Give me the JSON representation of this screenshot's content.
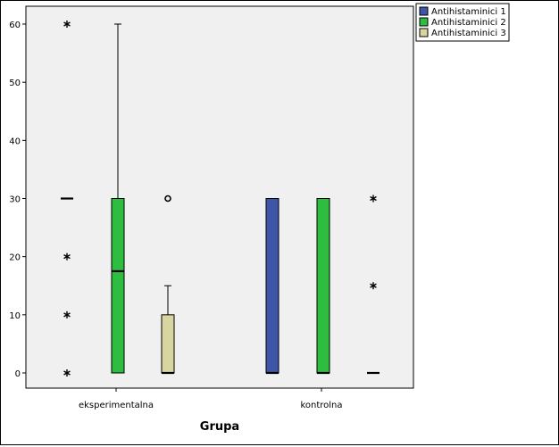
{
  "chart_data": {
    "type": "boxplot",
    "xlabel": "Grupa",
    "ylabel": "",
    "ylim": [
      -2,
      64
    ],
    "yticks": [
      0,
      10,
      20,
      30,
      40,
      50,
      60
    ],
    "categories": [
      "eksperimentalna",
      "kontrolna"
    ],
    "legend_position": "top-right",
    "grid": false,
    "series": [
      {
        "name": "Antihistaminici 1",
        "color": "#3f56a8",
        "boxes": [
          {
            "category": "eksperimentalna",
            "q1": 30,
            "median": 30,
            "q3": 30,
            "whisker_low": 30,
            "whisker_high": 30,
            "extremes": [
              60,
              20,
              10,
              0
            ],
            "outliers": []
          },
          {
            "category": "kontrolna",
            "q1": 0,
            "median": 0,
            "q3": 30,
            "whisker_low": 0,
            "whisker_high": 30,
            "extremes": [],
            "outliers": []
          }
        ]
      },
      {
        "name": "Antihistaminici 2",
        "color": "#2dbd3f",
        "boxes": [
          {
            "category": "eksperimentalna",
            "q1": 0,
            "median": 17.5,
            "q3": 30,
            "whisker_low": 0,
            "whisker_high": 60,
            "extremes": [],
            "outliers": []
          },
          {
            "category": "kontrolna",
            "q1": 0,
            "median": 0,
            "q3": 30,
            "whisker_low": 0,
            "whisker_high": 30,
            "extremes": [],
            "outliers": []
          }
        ]
      },
      {
        "name": "Antihistaminici 3",
        "color": "#d8d5a0",
        "boxes": [
          {
            "category": "eksperimentalna",
            "q1": 0,
            "median": 0,
            "q3": 10,
            "whisker_low": 0,
            "whisker_high": 15,
            "extremes": [],
            "outliers": [
              30
            ]
          },
          {
            "category": "kontrolna",
            "q1": 0,
            "median": 0,
            "q3": 0,
            "whisker_low": 0,
            "whisker_high": 0,
            "extremes": [
              30,
              15
            ],
            "outliers": []
          }
        ]
      }
    ]
  }
}
